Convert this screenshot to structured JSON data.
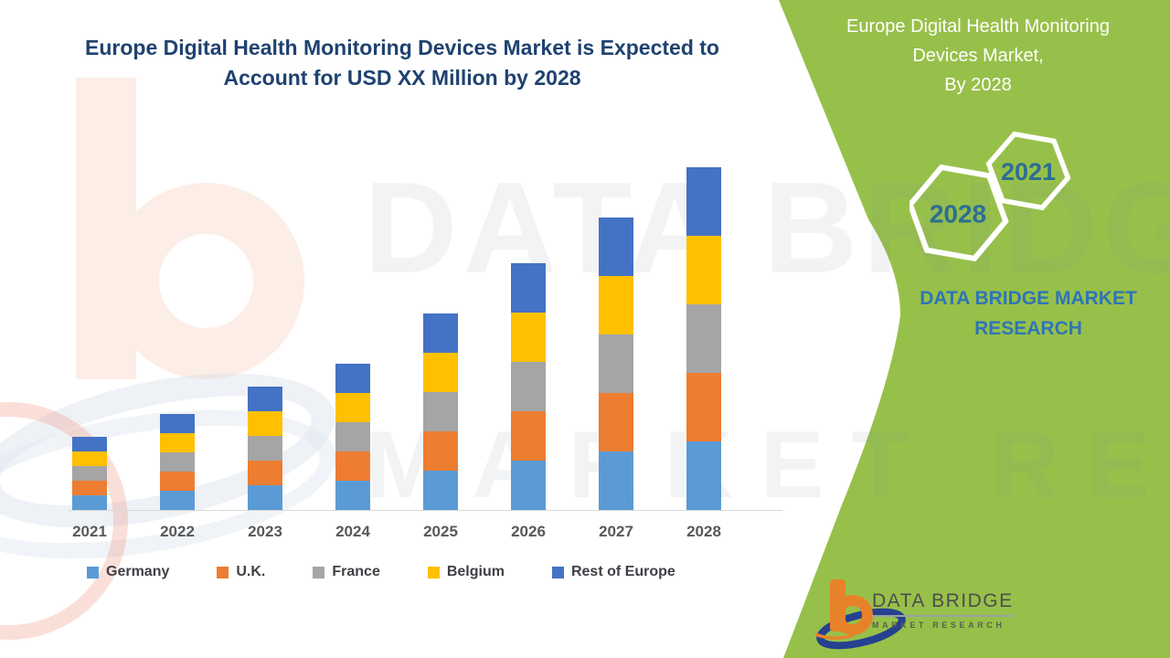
{
  "header": {
    "title_line1": "Europe Digital Health Monitoring Devices Market is Expected to",
    "title_line2": "Account for USD XX Million by 2028"
  },
  "side_panel": {
    "title_line1": "Europe Digital Health Monitoring",
    "title_line2": "Devices Market,",
    "title_line3": "By 2028",
    "hexagon_small_year": "2021",
    "hexagon_large_year": "2028",
    "brand_line1": "DATA BRIDGE MARKET",
    "brand_line2": "RESEARCH",
    "background_color": "#97C04A",
    "hexagon_text_color": "#2C6E93",
    "brand_text_color": "#2E75B6"
  },
  "watermark": {
    "text_line1": "DATA BRIDGE",
    "text_line2": "MARKET RESEARCH"
  },
  "logo": {
    "brand": "DATA BRIDGE",
    "tagline": "MARKET RESEARCH",
    "b_color": "#E8822A",
    "swoosh_color": "#25418F"
  },
  "chart_data": {
    "type": "bar",
    "stacked": true,
    "title": "Europe Digital Health Monitoring Devices Market is Expected to Account for USD XX Million by 2028",
    "xlabel": "",
    "ylabel": "",
    "units": "USD Million (actual values masked as XX; segment sizes estimated from pixels, relative units)",
    "categories": [
      "2021",
      "2022",
      "2023",
      "2024",
      "2025",
      "2026",
      "2027",
      "2028"
    ],
    "series": [
      {
        "name": "Germany",
        "color": "#5B9BD5",
        "values": [
          16,
          21,
          27,
          32,
          43,
          54,
          64,
          75
        ]
      },
      {
        "name": "U.K.",
        "color": "#ED7D31",
        "values": [
          16,
          21,
          27,
          32,
          43,
          54,
          64,
          75
        ]
      },
      {
        "name": "France",
        "color": "#A5A5A5",
        "values": [
          16,
          21,
          27,
          32,
          43,
          54,
          64,
          75
        ]
      },
      {
        "name": "Belgium",
        "color": "#FFC000",
        "values": [
          16,
          21,
          27,
          32,
          43,
          54,
          64,
          75
        ]
      },
      {
        "name": "Rest of Europe",
        "color": "#4472C4",
        "values": [
          16,
          21,
          27,
          32,
          43,
          54,
          64,
          75
        ]
      }
    ],
    "stack_totals": [
      80,
      105,
      135,
      160,
      215,
      270,
      320,
      375
    ],
    "legend_position": "bottom",
    "grid": false,
    "y_axis_visible": false,
    "axis_line_color": "#D8D8D8"
  }
}
